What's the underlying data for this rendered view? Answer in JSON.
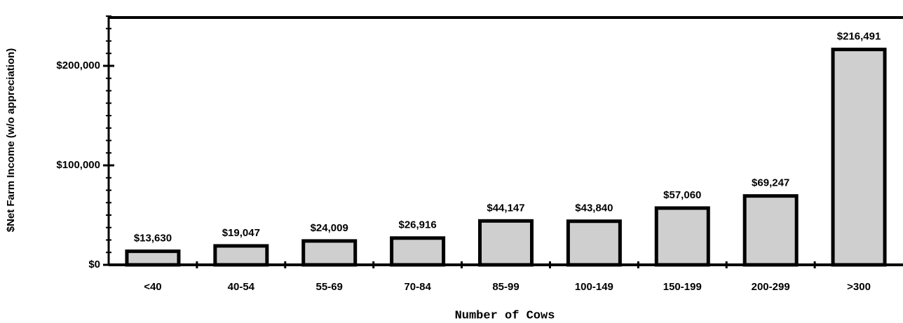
{
  "chart_data": {
    "type": "bar",
    "x_label": "Number of Cows",
    "y_label": "$Net Farm Income (w/o appreciation)",
    "categories": [
      "<40",
      "40-54",
      "55-69",
      "70-84",
      "85-99",
      "100-149",
      "150-199",
      "200-299",
      ">300"
    ],
    "values": [
      13630,
      19047,
      24009,
      26916,
      44147,
      43840,
      57060,
      69247,
      216491
    ],
    "value_labels": [
      "$13,630",
      "$19,047",
      "$24,009",
      "$26,916",
      "$44,147",
      "$43,840",
      "$57,060",
      "$69,247",
      "$216,491"
    ],
    "color": "#cfcfcf",
    "ylim": [
      0,
      250000
    ],
    "yticks": [
      {
        "value": 0,
        "label": "$0"
      },
      {
        "value": 100000,
        "label": "$100,000"
      },
      {
        "value": 200000,
        "label": "$200,000"
      }
    ],
    "grid": false
  }
}
